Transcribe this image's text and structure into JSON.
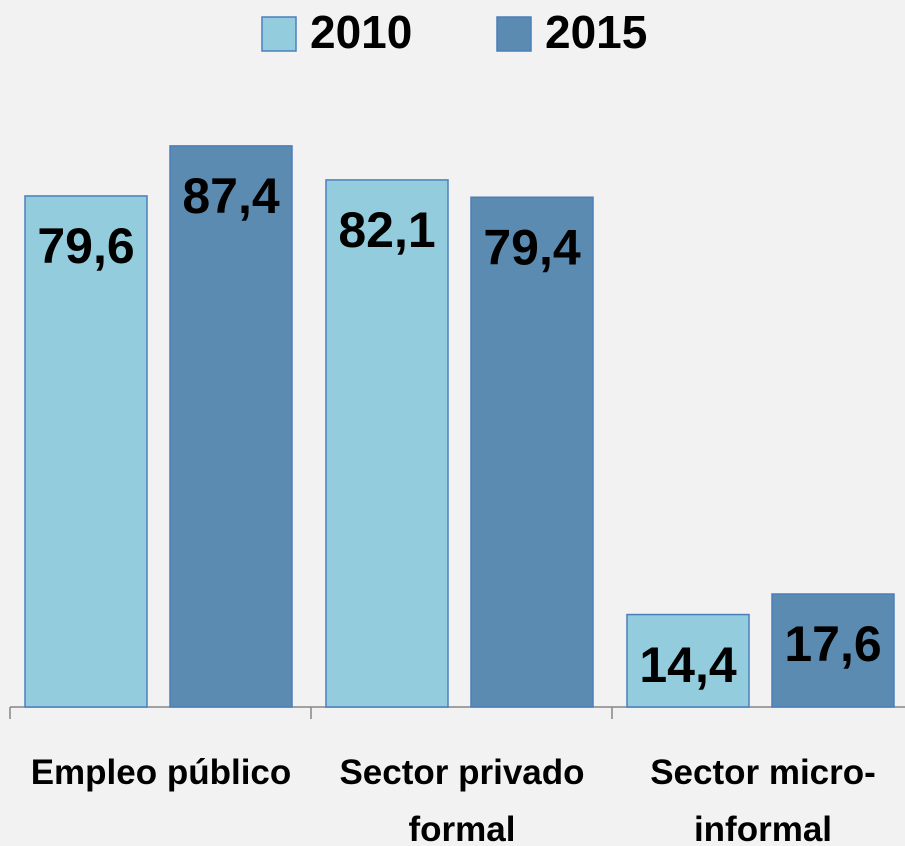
{
  "chart_data": {
    "type": "bar",
    "categories": [
      "Empleo público",
      "Sector privado formal",
      "Sector micro-informal"
    ],
    "series": [
      {
        "name": "2010",
        "color": "#93cddd",
        "values": [
          79.6,
          82.1,
          14.4
        ],
        "value_labels": [
          "79,6",
          "82,1",
          "14,4"
        ]
      },
      {
        "name": "2015",
        "color": "#5b8bb0",
        "values": [
          87.4,
          79.4,
          17.6
        ],
        "value_labels": [
          "87,4",
          "79,4",
          "17,6"
        ]
      }
    ],
    "legend": "top"
  }
}
